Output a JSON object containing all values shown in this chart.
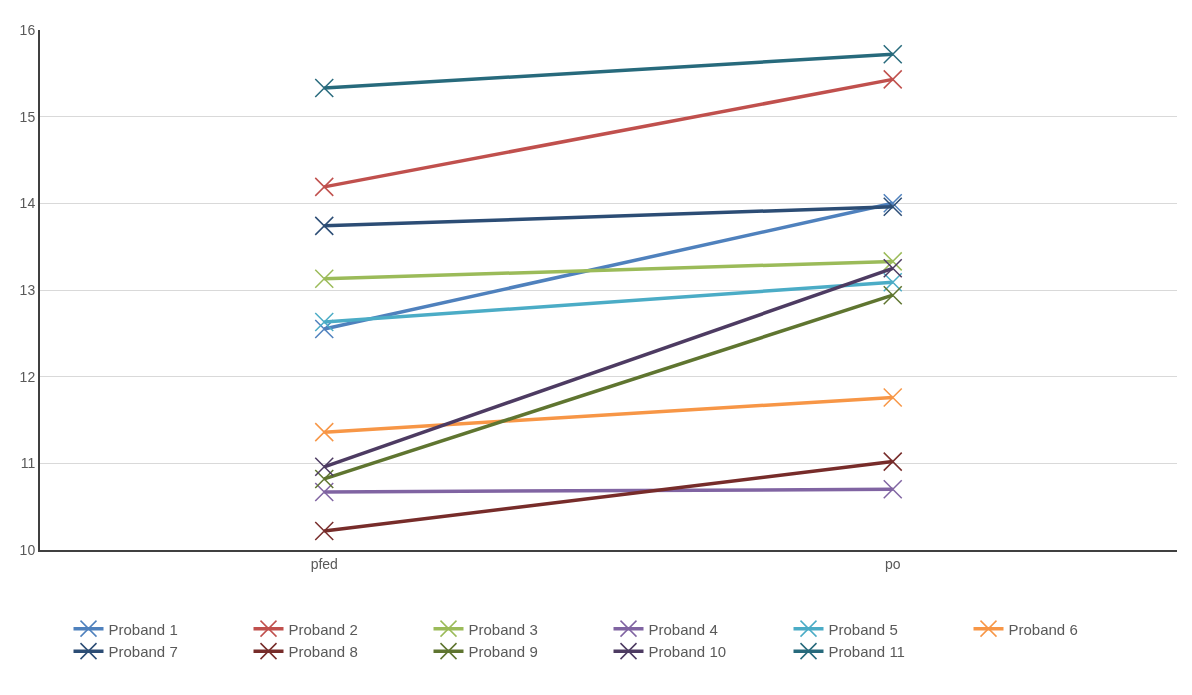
{
  "chart_data": {
    "type": "line",
    "categories": [
      "pfed",
      "po"
    ],
    "ylim": [
      10,
      16
    ],
    "yticks": [
      10,
      11,
      12,
      13,
      14,
      15,
      16
    ],
    "grid": "y",
    "legend": "bottom",
    "marker": "cross",
    "line_style": "solid",
    "series": [
      {
        "name": "Proband 1",
        "color": "#4f81bd",
        "values": [
          12.55,
          14.0
        ]
      },
      {
        "name": "Proband 2",
        "color": "#c0504d",
        "values": [
          14.19,
          15.43
        ]
      },
      {
        "name": "Proband 3",
        "color": "#9bbb59",
        "values": [
          13.13,
          13.33
        ]
      },
      {
        "name": "Proband 4",
        "color": "#8064a2",
        "values": [
          10.67,
          10.7
        ]
      },
      {
        "name": "Proband 5",
        "color": "#4bacc6",
        "values": [
          12.63,
          13.09
        ]
      },
      {
        "name": "Proband 6",
        "color": "#f79646",
        "values": [
          11.36,
          11.76
        ]
      },
      {
        "name": "Proband 7",
        "color": "#2c4d75",
        "values": [
          13.74,
          13.96
        ]
      },
      {
        "name": "Proband 8",
        "color": "#772c2a",
        "values": [
          10.22,
          11.02
        ]
      },
      {
        "name": "Proband 9",
        "color": "#5f7530",
        "values": [
          10.82,
          12.94
        ]
      },
      {
        "name": "Proband 10",
        "color": "#4d3b62",
        "values": [
          10.96,
          13.25
        ]
      },
      {
        "name": "Proband 11",
        "color": "#276a7c",
        "values": [
          15.33,
          15.72
        ]
      }
    ]
  }
}
